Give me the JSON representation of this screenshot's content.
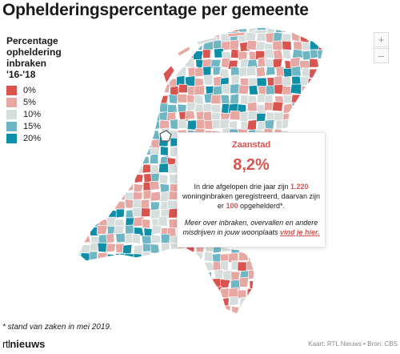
{
  "title": "Ophelderingspercentage per gemeente",
  "legend": {
    "title_lines": [
      "Percentage",
      "opheldering",
      "inbraken",
      "'16-'18"
    ],
    "items": [
      {
        "label": "0%",
        "color": "#d9534f"
      },
      {
        "label": "5%",
        "color": "#e7a8a3"
      },
      {
        "label": "10%",
        "color": "#d6dedd"
      },
      {
        "label": "15%",
        "color": "#6eb6c4"
      },
      {
        "label": "20%",
        "color": "#0f8ea8"
      }
    ]
  },
  "zoom": {
    "in": "+",
    "out": "–"
  },
  "popup": {
    "municipality": "Zaanstad",
    "percentage": "8,2%",
    "text_1": "In drie afgelopen drie jaar zijn",
    "burglaries": "1.220",
    "text_2": "woninginbraken geregistreerd, daarvan zijn er",
    "solved": "100",
    "text_3": "opgehelderd*.",
    "more_text": "Meer over inbraken, overvallen en andere misdrijven in jouw woonplaats",
    "link_text": "vind je hier."
  },
  "footnote": "* stand van zaken in mei 2019.",
  "logo": {
    "prefix": "rtl",
    "suffix": "nieuws"
  },
  "credit": "Kaart: RTL Nieuws • Bron: CBS"
}
